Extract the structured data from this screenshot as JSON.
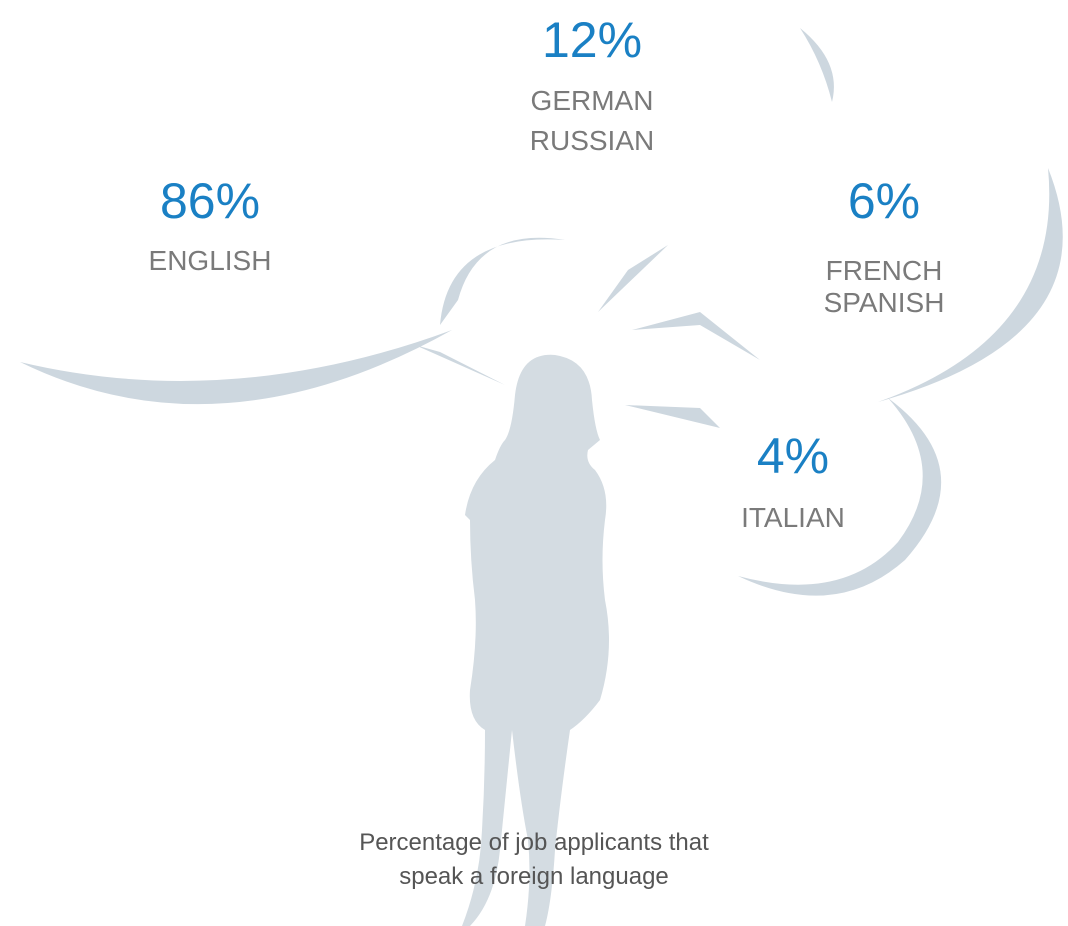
{
  "bubbles": [
    {
      "value": "86%",
      "languages": [
        "ENGLISH"
      ]
    },
    {
      "value": "12%",
      "languages": [
        "GERMAN",
        "RUSSIAN"
      ]
    },
    {
      "value": "6%",
      "languages": [
        "FRENCH",
        "SPANISH"
      ]
    },
    {
      "value": "4%",
      "languages": [
        "ITALIAN"
      ]
    }
  ],
  "caption": [
    "Percentage of job applicants that",
    "speak a foreign language"
  ]
}
